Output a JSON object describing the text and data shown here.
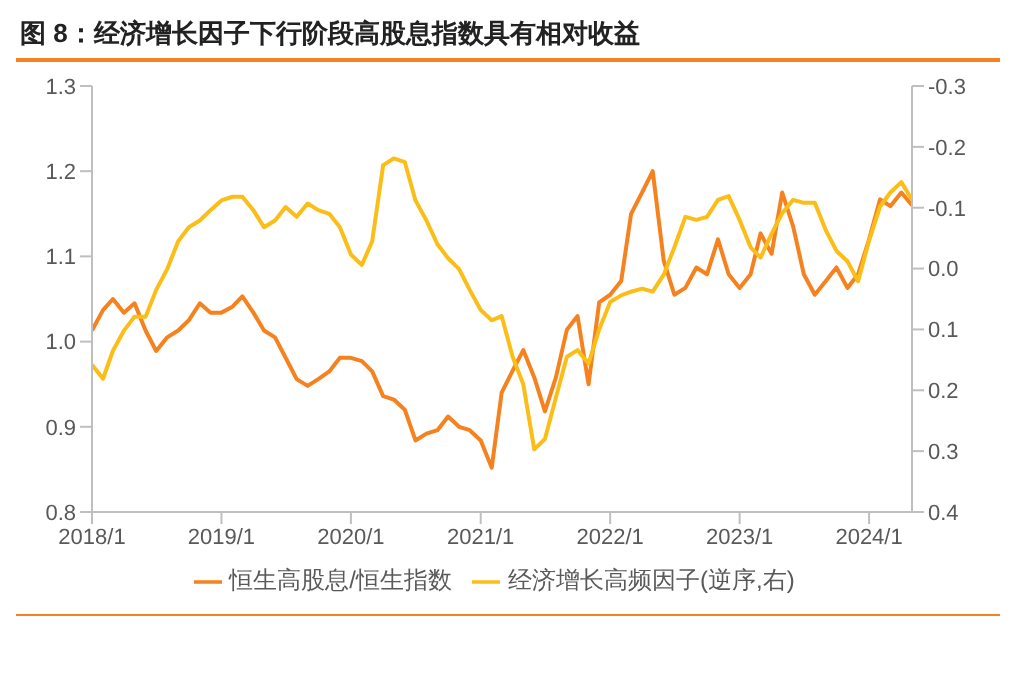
{
  "chart_data": {
    "type": "line",
    "title": "图 8：经济增长因子下行阶段高股息指数具有相对收益",
    "x": [
      "2018-01",
      "2018-02",
      "2018-03",
      "2018-04",
      "2018-05",
      "2018-06",
      "2018-07",
      "2018-08",
      "2018-09",
      "2018-10",
      "2018-11",
      "2018-12",
      "2019-01",
      "2019-02",
      "2019-03",
      "2019-04",
      "2019-05",
      "2019-06",
      "2019-07",
      "2019-08",
      "2019-09",
      "2019-10",
      "2019-11",
      "2019-12",
      "2020-01",
      "2020-02",
      "2020-03",
      "2020-04",
      "2020-05",
      "2020-06",
      "2020-07",
      "2020-08",
      "2020-09",
      "2020-10",
      "2020-11",
      "2020-12",
      "2021-01",
      "2021-02",
      "2021-03",
      "2021-04",
      "2021-05",
      "2021-06",
      "2021-07",
      "2021-08",
      "2021-09",
      "2021-10",
      "2021-11",
      "2021-12",
      "2022-01",
      "2022-02",
      "2022-03",
      "2022-04",
      "2022-05",
      "2022-06",
      "2022-07",
      "2022-08",
      "2022-09",
      "2022-10",
      "2022-11",
      "2022-12",
      "2023-01",
      "2023-02",
      "2023-03",
      "2023-04",
      "2023-05",
      "2023-06",
      "2023-07",
      "2023-08",
      "2023-09",
      "2023-10",
      "2023-11",
      "2023-12",
      "2024-01",
      "2024-02",
      "2024-03",
      "2024-04",
      "2024-05"
    ],
    "series": [
      {
        "name": "恒生高股息/恒生指数",
        "color": "#f5821f",
        "values": [
          1.013,
          1.037,
          1.05,
          1.034,
          1.045,
          1.013,
          0.989,
          1.005,
          1.013,
          1.025,
          1.045,
          1.034,
          1.034,
          1.041,
          1.053,
          1.034,
          1.013,
          1.005,
          0.981,
          0.956,
          0.948,
          0.956,
          0.965,
          0.981,
          0.981,
          0.977,
          0.965,
          0.936,
          0.932,
          0.92,
          0.884,
          0.892,
          0.896,
          0.912,
          0.9,
          0.896,
          0.884,
          0.852,
          0.94,
          0.966,
          0.99,
          0.958,
          0.918,
          0.958,
          1.014,
          1.03,
          0.95,
          1.046,
          1.055,
          1.071,
          1.15,
          1.175,
          1.2,
          1.095,
          1.055,
          1.063,
          1.087,
          1.079,
          1.12,
          1.079,
          1.063,
          1.079,
          1.127,
          1.103,
          1.175,
          1.135,
          1.079,
          1.055,
          1.071,
          1.087,
          1.063,
          1.079,
          1.12,
          1.167,
          1.159,
          1.175,
          1.16
        ]
      },
      {
        "name": "经济增长高频因子(逆序,右)",
        "color": "#fbbd18",
        "axis": "y2",
        "values": [
          0.158,
          0.181,
          0.135,
          0.102,
          0.079,
          0.079,
          0.035,
          0.001,
          -0.045,
          -0.068,
          -0.079,
          -0.096,
          -0.112,
          -0.118,
          -0.118,
          -0.096,
          -0.068,
          -0.079,
          -0.101,
          -0.085,
          -0.107,
          -0.096,
          -0.09,
          -0.068,
          -0.023,
          -0.006,
          -0.045,
          -0.17,
          -0.181,
          -0.175,
          -0.112,
          -0.079,
          -0.04,
          -0.017,
          0.001,
          0.035,
          0.068,
          0.085,
          0.078,
          0.145,
          0.19,
          0.297,
          0.28,
          0.212,
          0.145,
          0.134,
          0.156,
          0.1,
          0.055,
          0.044,
          0.038,
          0.033,
          0.038,
          0.01,
          -0.035,
          -0.085,
          -0.08,
          -0.085,
          -0.113,
          -0.119,
          -0.08,
          -0.035,
          -0.018,
          -0.057,
          -0.091,
          -0.113,
          -0.108,
          -0.108,
          -0.063,
          -0.029,
          -0.012,
          0.021,
          -0.046,
          -0.102,
          -0.125,
          -0.142,
          -0.113
        ]
      }
    ],
    "xlim": [
      "2018-01",
      "2024-05"
    ],
    "xticks": [
      {
        "value": "2018-01",
        "label": "2018/1"
      },
      {
        "value": "2019-01",
        "label": "2019/1"
      },
      {
        "value": "2020-01",
        "label": "2020/1"
      },
      {
        "value": "2021-01",
        "label": "2021/1"
      },
      {
        "value": "2022-01",
        "label": "2022/1"
      },
      {
        "value": "2023-01",
        "label": "2023/1"
      },
      {
        "value": "2024-01",
        "label": "2024/1"
      }
    ],
    "ylim": [
      0.8,
      1.3
    ],
    "yticks": [
      {
        "value": 0.8,
        "label": "0.8"
      },
      {
        "value": 0.9,
        "label": "0.9"
      },
      {
        "value": 1.0,
        "label": "1.0"
      },
      {
        "value": 1.1,
        "label": "1.1"
      },
      {
        "value": 1.2,
        "label": "1.2"
      },
      {
        "value": 1.3,
        "label": "1.3"
      }
    ],
    "y2lim": [
      0.4,
      -0.3
    ],
    "y2ticks": [
      {
        "value": -0.3,
        "label": "-0.3"
      },
      {
        "value": -0.2,
        "label": "-0.2"
      },
      {
        "value": -0.1,
        "label": "-0.1"
      },
      {
        "value": 0,
        "label": "0.0"
      },
      {
        "value": 0.1,
        "label": "0.1"
      },
      {
        "value": 0.2,
        "label": "0.2"
      },
      {
        "value": 0.3,
        "label": "0.3"
      },
      {
        "value": 0.4,
        "label": "0.4"
      }
    ],
    "grid": false,
    "legend": "bottom",
    "marker": "none",
    "line_style": "solid"
  }
}
